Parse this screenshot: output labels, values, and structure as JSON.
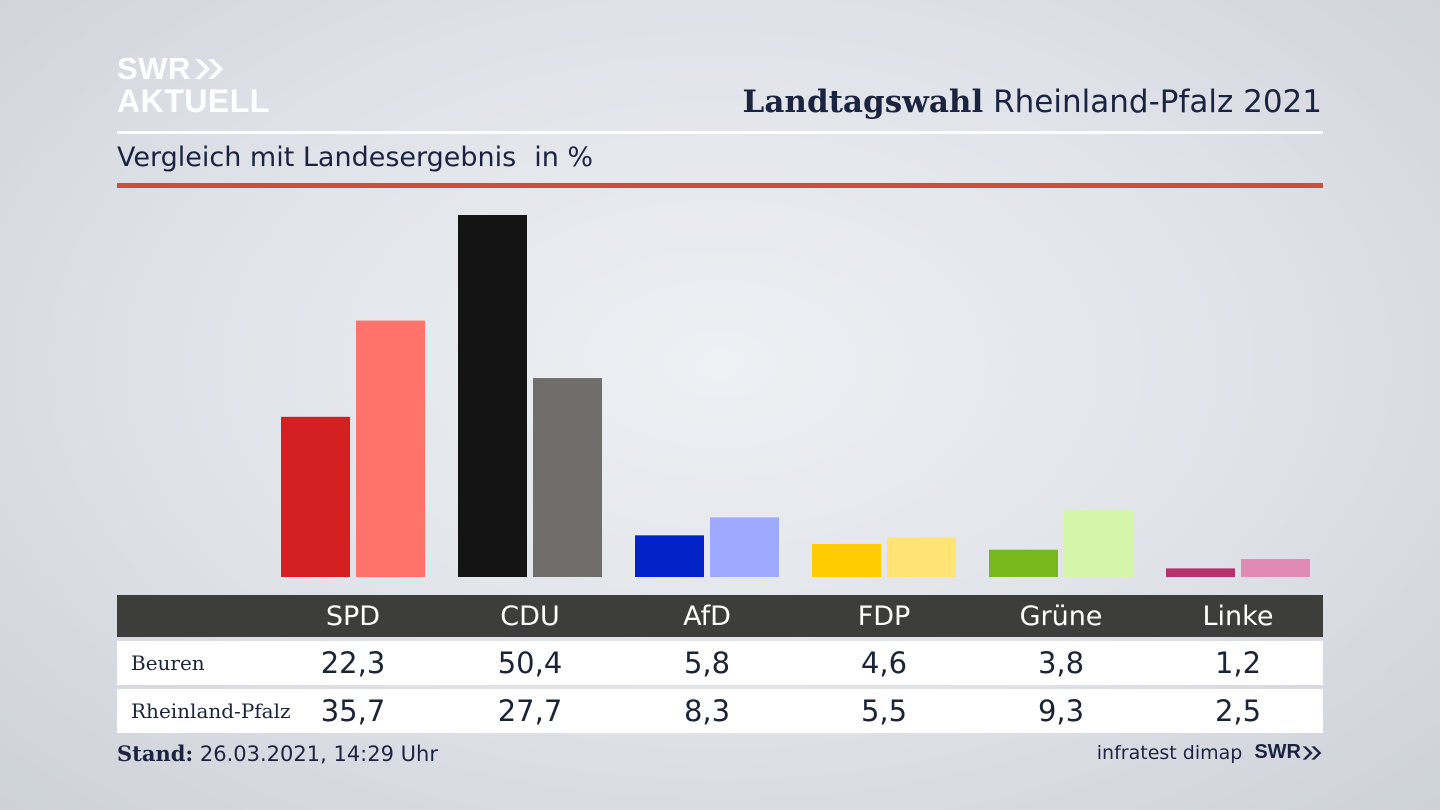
{
  "brand": {
    "logo_line1": "SWR",
    "logo_line2": "AKTUELL"
  },
  "header": {
    "title_bold": "Landtagswahl",
    "title_rest": "Rheinland-Pfalz 2021",
    "subtitle": "Vergleich mit Landesergebnis",
    "unit": "in %"
  },
  "chart_data": {
    "type": "bar",
    "categories": [
      "SPD",
      "CDU",
      "AfD",
      "FDP",
      "Grüne",
      "Linke"
    ],
    "series": [
      {
        "name": "Beuren",
        "values": [
          22.3,
          50.4,
          5.8,
          4.6,
          3.8,
          1.2
        ],
        "display": [
          "22,3",
          "50,4",
          "5,8",
          "4,6",
          "3,8",
          "1,2"
        ]
      },
      {
        "name": "Rheinland-Pfalz",
        "values": [
          35.7,
          27.7,
          8.3,
          5.5,
          9.3,
          2.5
        ],
        "display": [
          "35,7",
          "27,7",
          "8,3",
          "5,5",
          "9,3",
          "2,5"
        ]
      }
    ],
    "colors": {
      "Beuren": [
        "#d42020",
        "#141414",
        "#0322c8",
        "#ffcc00",
        "#78b81f",
        "#b8306e"
      ],
      "Rheinland-Pfalz": [
        "#ff736c",
        "#6f6e6c",
        "#9daaff",
        "#ffe375",
        "#d5f5a8",
        "#e08ab4"
      ]
    },
    "ylim": [
      0,
      50.4
    ],
    "grid": false
  },
  "footer": {
    "stand_label": "Stand:",
    "stand_value": "26.03.2021, 14:29 Uhr",
    "source": "infratest dimap",
    "brand": "SWR"
  }
}
